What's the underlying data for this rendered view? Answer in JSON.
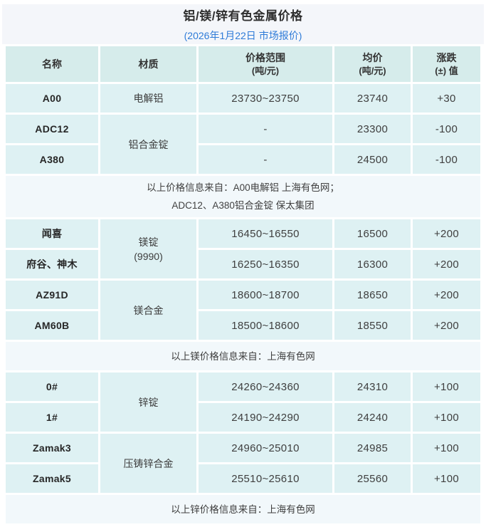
{
  "header": {
    "title": "铝/镁/锌有色金属价格",
    "subtitle": "(2026年1月22日 市场报价)"
  },
  "columns": {
    "name": "名称",
    "material": "材质",
    "range": "价格范围",
    "range_sub": "(吨/元)",
    "avg": "均价",
    "avg_sub": "(吨/元)",
    "change": "涨跌",
    "change_sub": "(±) 值"
  },
  "sections": [
    {
      "metal": "aluminum",
      "rows": [
        {
          "name": "A00",
          "material": "电解铝",
          "range": "23730~23750",
          "avg": "23740",
          "chg": "+30"
        },
        {
          "name": "ADC12",
          "material": "铝合金锭",
          "range": "-",
          "avg": "23300",
          "chg": "-100"
        },
        {
          "name": "A380",
          "range": "-",
          "avg": "24500",
          "chg": "-100"
        }
      ],
      "note_lines": [
        "以上价格信息来自：A00电解铝 上海有色网；",
        "ADC12、A380铝合金锭 保太集团"
      ]
    },
    {
      "metal": "magnesium",
      "rows": [
        {
          "name": "闻喜",
          "material": "镁锭",
          "material_sub": "(9990)",
          "range": "16450~16550",
          "avg": "16500",
          "chg": "+200"
        },
        {
          "name": "府谷、神木",
          "range": "16250~16350",
          "avg": "16300",
          "chg": "+200"
        },
        {
          "name": "AZ91D",
          "material": "镁合金",
          "range": "18600~18700",
          "avg": "18650",
          "chg": "+200"
        },
        {
          "name": "AM60B",
          "range": "18500~18600",
          "avg": "18550",
          "chg": "+200"
        }
      ],
      "note_lines": [
        "以上镁价格信息来自：上海有色网"
      ]
    },
    {
      "metal": "zinc",
      "rows": [
        {
          "name": "0#",
          "material": "锌锭",
          "range": "24260~24360",
          "avg": "24310",
          "chg": "+100"
        },
        {
          "name": "1#",
          "range": "24190~24290",
          "avg": "24240",
          "chg": "+100"
        },
        {
          "name": "Zamak3",
          "material": "压铸锌合金",
          "range": "24960~25010",
          "avg": "24985",
          "chg": "+100"
        },
        {
          "name": "Zamak5",
          "range": "25510~25610",
          "avg": "25560",
          "chg": "+100"
        }
      ],
      "note_lines": [
        "以上锌价格信息来自：上海有色网"
      ]
    }
  ],
  "colors": {
    "card_bg": "#f4f6fa",
    "header_cell_bg": "#d6eceb",
    "data_cell_bg": "#def1f3",
    "note_bg": "#f2f8fb",
    "subtitle_blue": "#2e7bd8",
    "text_dark": "#333333"
  },
  "chart_data": {
    "type": "table",
    "title": "铝/镁/锌有色金属价格",
    "subtitle": "(2026年1月22日 市场报价)",
    "columns": [
      "名称",
      "材质",
      "价格范围(吨/元)",
      "均价(吨/元)",
      "涨跌(±)值"
    ],
    "rows": [
      [
        "A00",
        "电解铝",
        "23730~23750",
        23740,
        30
      ],
      [
        "ADC12",
        "铝合金锭",
        "-",
        23300,
        -100
      ],
      [
        "A380",
        "铝合金锭",
        "-",
        24500,
        -100
      ],
      [
        "闻喜",
        "镁锭(9990)",
        "16450~16550",
        16500,
        200
      ],
      [
        "府谷、神木",
        "镁锭(9990)",
        "16250~16350",
        16300,
        200
      ],
      [
        "AZ91D",
        "镁合金",
        "18600~18700",
        18650,
        200
      ],
      [
        "AM60B",
        "镁合金",
        "18500~18600",
        18550,
        200
      ],
      [
        "0#",
        "锌锭",
        "24260~24360",
        24310,
        100
      ],
      [
        "1#",
        "锌锭",
        "24190~24290",
        24240,
        100
      ],
      [
        "Zamak3",
        "压铸锌合金",
        "24960~25010",
        24985,
        100
      ],
      [
        "Zamak5",
        "压铸锌合金",
        "25510~25610",
        25560,
        100
      ]
    ],
    "notes": [
      "以上价格信息来自：A00电解铝 上海有色网；ADC12、A380铝合金锭 保太集团",
      "以上镁价格信息来自：上海有色网",
      "以上锌价格信息来自：上海有色网"
    ]
  }
}
